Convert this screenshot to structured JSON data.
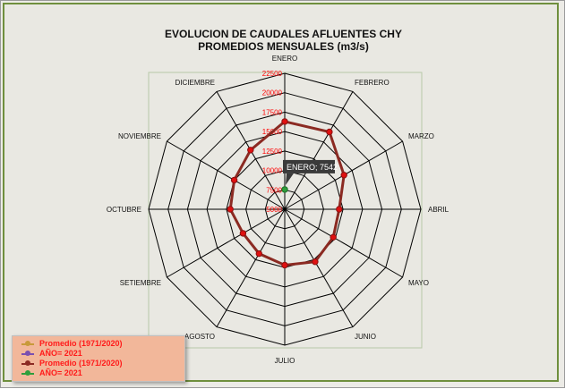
{
  "chart_data": {
    "type": "radar",
    "title": "EVOLUCION DE CAUDALES AFLUENTES CHY",
    "subtitle": "PROMEDIOS MENSUALES (m3/s)",
    "categories": [
      "ENERO",
      "FEBRERO",
      "MARZO",
      "ABRIL",
      "MAYO",
      "JUNIO",
      "JULIO",
      "AGOSTO",
      "SETIEMBRE",
      "OCTUBRE",
      "NOVIEMBRE",
      "DICIEMBRE"
    ],
    "rlim": [
      5000,
      22500
    ],
    "ticks": [
      5000,
      7500,
      10000,
      12500,
      15000,
      17500,
      20000,
      22500
    ],
    "tick_labels": [
      "5000",
      "7500",
      "10000",
      "12500",
      "15000",
      "17500",
      "20000",
      "22500"
    ],
    "series": [
      {
        "name": "Promedio (1971/2020)",
        "color": "#8b2a22",
        "values": [
          16300,
          16500,
          13800,
          12000,
          12200,
          12800,
          12200,
          11600,
          11200,
          12000,
          12500,
          13800
        ]
      },
      {
        "name": "AÑO= 2021",
        "color": "#2e9e3b",
        "values": [
          7542,
          null,
          null,
          null,
          null,
          null,
          null,
          null,
          null,
          null,
          null,
          null
        ]
      }
    ],
    "legend": [
      {
        "label": "Promedio (1971/2020)",
        "color": "#c89a3a"
      },
      {
        "label": "AÑO= 2021",
        "color": "#7a4fb0"
      },
      {
        "label": "Promedio (1971/2020)",
        "color": "#8b2a22"
      },
      {
        "label": "AÑO= 2021",
        "color": "#2e9e3b"
      }
    ],
    "tooltip": "ENERO; 7542",
    "grid": true,
    "legend_position": "bottom-left"
  },
  "colors": {
    "tick_label": "#ff0000",
    "grid": "#000000",
    "legend_bg": "#f2b79a"
  }
}
